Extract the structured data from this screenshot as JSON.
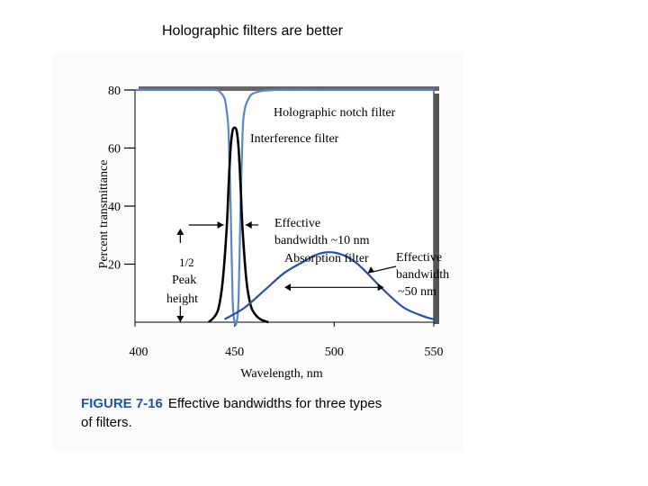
{
  "slide": {
    "title": "Holographic filters are better"
  },
  "chart_data": {
    "type": "line",
    "xlabel": "Wavelength, nm",
    "ylabel": "Percent transmittance",
    "xlim": [
      400,
      550
    ],
    "ylim": [
      0,
      80
    ],
    "xticks": [
      "400",
      "450",
      "500",
      "550"
    ],
    "yticks": [
      "80",
      "60",
      "40",
      "20"
    ],
    "series": [
      {
        "name": "Holographic notch filter",
        "color": "#5a86c8",
        "x": [
          400,
          425,
          440,
          443,
          445,
          446,
          447,
          448,
          449,
          450,
          451,
          452,
          453,
          454,
          455,
          457,
          460,
          470,
          500,
          550
        ],
        "y": [
          80,
          80,
          80,
          79,
          77,
          73,
          65,
          40,
          8,
          0,
          0,
          8,
          40,
          65,
          73,
          77,
          79,
          80,
          80,
          80
        ]
      },
      {
        "name": "Interference filter",
        "color": "#000000",
        "x": [
          437,
          440,
          442,
          444,
          446,
          447,
          448,
          449,
          450,
          451,
          452,
          453,
          454,
          456,
          458,
          460,
          463,
          467
        ],
        "y": [
          0,
          2,
          5,
          14,
          32,
          47,
          60,
          66,
          67,
          66,
          60,
          47,
          32,
          14,
          6,
          3,
          1,
          0
        ]
      },
      {
        "name": "Absorption filter",
        "color": "#2a4fa8",
        "x": [
          445,
          455,
          465,
          475,
          485,
          490,
          495,
          500,
          505,
          510,
          515,
          525,
          535,
          545,
          550
        ],
        "y": [
          1,
          5,
          11,
          17,
          21,
          23,
          24,
          24,
          23,
          21,
          18,
          11,
          5,
          2,
          1
        ]
      }
    ],
    "annotations": [
      {
        "text": "Effective",
        "color": "#000000"
      },
      {
        "text": "bandwidth ~10 nm",
        "color": "#000000"
      },
      {
        "text": "Absorption filter",
        "color": "#000000"
      },
      {
        "text": "Effective",
        "color": "#000000"
      },
      {
        "text": "bandwidth",
        "color": "#000000"
      },
      {
        "text": "~50 nm",
        "color": "#000000"
      },
      {
        "text": "1/2",
        "color": "#000000"
      },
      {
        "text": "Peak",
        "color": "#000000"
      },
      {
        "text": "height",
        "color": "#000000"
      }
    ],
    "bandwidth_markers": [
      {
        "label": "~10 nm",
        "x_from": 445,
        "x_to": 455,
        "y": 33.5
      },
      {
        "label": "~50 nm",
        "x_from": 475,
        "x_to": 525,
        "y": 12
      }
    ],
    "half_height_marker": {
      "x": 425,
      "y": 33.5
    }
  },
  "caption": {
    "figure_number": "FIGURE 7-16",
    "text": "Effective bandwidths for three types",
    "line2": "of filters."
  }
}
